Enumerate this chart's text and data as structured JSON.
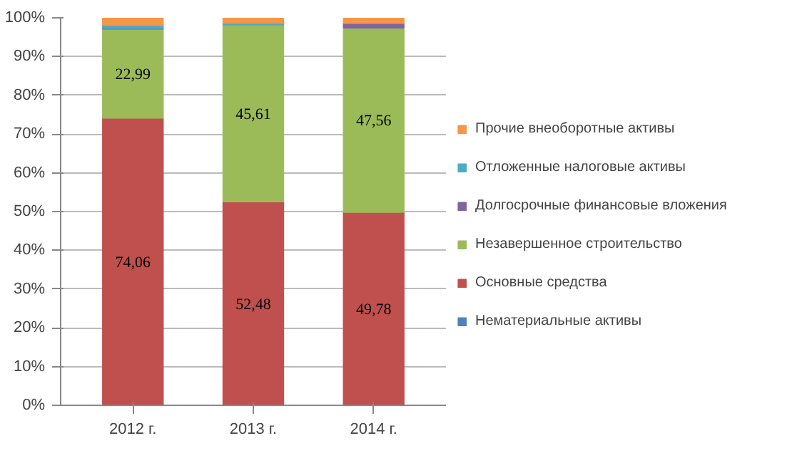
{
  "chart_data": {
    "type": "bar",
    "stacked": true,
    "categories": [
      "2012 г.",
      "2013 г.",
      "2014 г."
    ],
    "ylim": [
      0,
      100
    ],
    "yticks": [
      {
        "value": 0,
        "label": "0%"
      },
      {
        "value": 10,
        "label": "10%"
      },
      {
        "value": 20,
        "label": "20%"
      },
      {
        "value": 30,
        "label": "30%"
      },
      {
        "value": 40,
        "label": "40%"
      },
      {
        "value": 50,
        "label": "50%"
      },
      {
        "value": 60,
        "label": "60%"
      },
      {
        "value": 70,
        "label": "70%"
      },
      {
        "value": 80,
        "label": "80%"
      },
      {
        "value": 90,
        "label": "90%"
      },
      {
        "value": 100,
        "label": "100%"
      }
    ],
    "grid": "y",
    "legend": "right",
    "series": [
      {
        "name": "Нематериальные активы",
        "color": "#4f81bd",
        "values": [
          0.1,
          0.1,
          0.1
        ]
      },
      {
        "name": "Основные средства",
        "color": "#c0504d",
        "values": [
          74.06,
          52.48,
          49.78
        ],
        "value_labels": [
          "74,06",
          "52,48",
          "49,78"
        ]
      },
      {
        "name": "Незавершенное строительство",
        "color": "#9bbb59",
        "values": [
          22.99,
          45.61,
          47.56
        ],
        "value_labels": [
          "22,99",
          "45,61",
          "47,56"
        ]
      },
      {
        "name": "Долгосрочные финансовые вложения",
        "color": "#8064a2",
        "values": [
          0.2,
          null,
          1.2
        ]
      },
      {
        "name": "Отложенные налоговые активы",
        "color": "#4bacc6",
        "values": [
          0.8,
          0.5,
          null
        ]
      },
      {
        "name": "Прочие внеоборотные активы",
        "color": "#f79646",
        "values": [
          1.8,
          1.2,
          1.2
        ]
      }
    ]
  }
}
